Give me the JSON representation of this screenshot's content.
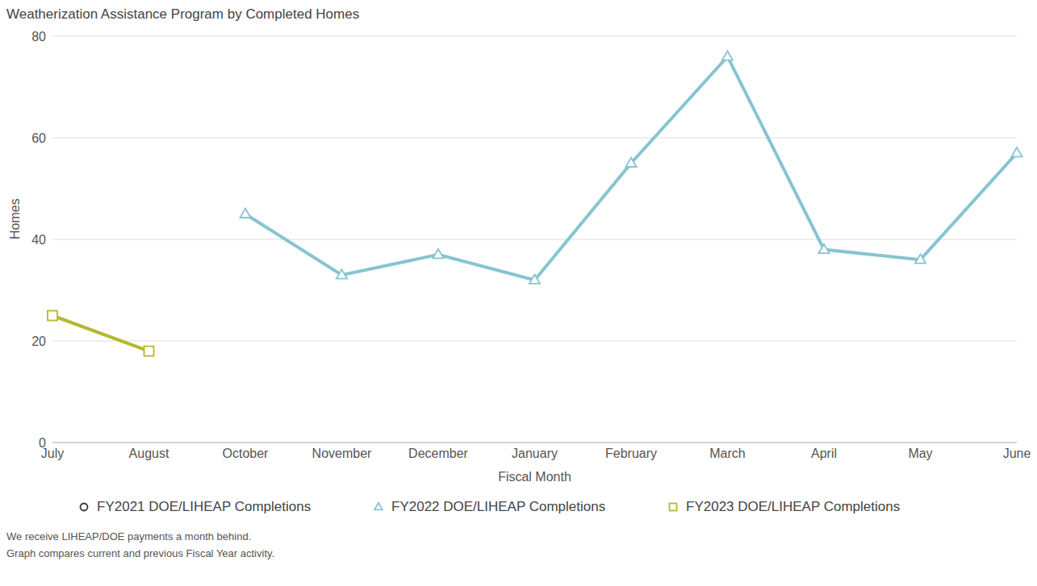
{
  "chart_data": {
    "type": "line",
    "title": "Weatherization Assistance Program by Completed Homes",
    "x_label": "Fiscal Month",
    "y_label": "Homes",
    "categories": [
      "July",
      "August",
      "October",
      "November",
      "December",
      "January",
      "February",
      "March",
      "April",
      "May",
      "June"
    ],
    "series": [
      {
        "name": "FY2021 DOE/LIHEAP Completions",
        "color": "#333333",
        "marker": "circle",
        "values": [
          null,
          null,
          null,
          null,
          null,
          null,
          null,
          null,
          null,
          null,
          null
        ]
      },
      {
        "name": "FY2022 DOE/LIHEAP Completions",
        "color": "#86c5cf",
        "marker": "triangle",
        "values": [
          null,
          null,
          45,
          33,
          37,
          32,
          55,
          76,
          38,
          36,
          57
        ]
      },
      {
        "name": "FY2023 DOE/LIHEAP Completions",
        "color": "#b5b82e",
        "marker": "square",
        "values": [
          25,
          18,
          null,
          null,
          null,
          null,
          null,
          null,
          null,
          null,
          null
        ]
      }
    ],
    "ylim": [
      0,
      80
    ],
    "yticks": [
      0,
      20,
      40,
      60,
      80
    ],
    "grid": true,
    "legend": "bottom",
    "annotations": [
      "We receive LIHEAP/DOE payments a month behind.",
      "Graph compares current and previous Fiscal Year activity."
    ]
  }
}
